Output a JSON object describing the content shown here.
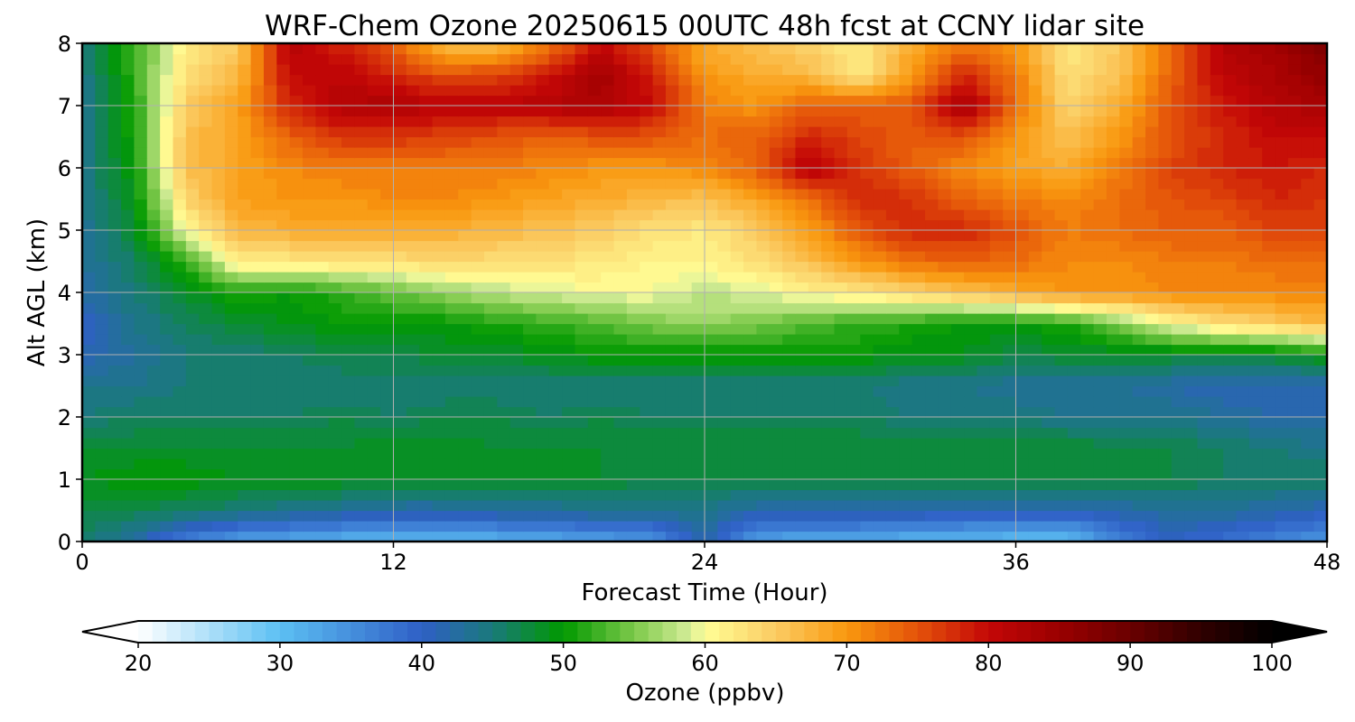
{
  "chart_data": {
    "type": "heatmap",
    "title": "WRF-Chem Ozone  20250615 00UTC 48h fcst at CCNY lidar site",
    "xlabel": "Forecast Time (Hour)",
    "ylabel": "Alt AGL (km)",
    "xlim": [
      0,
      48
    ],
    "ylim": [
      0,
      8
    ],
    "xticks": [
      "0",
      "12",
      "24",
      "36",
      "48"
    ],
    "yticks": [
      "0",
      "1",
      "2",
      "3",
      "4",
      "5",
      "6",
      "7",
      "8"
    ],
    "grid": true,
    "x": [
      0,
      2,
      4,
      6,
      8,
      10,
      12,
      14,
      16,
      18,
      20,
      22,
      24,
      26,
      28,
      30,
      32,
      34,
      36,
      38,
      40,
      42,
      44,
      46,
      48
    ],
    "y": [
      0,
      0.5,
      1,
      1.5,
      2,
      2.5,
      3,
      3.5,
      4,
      4.5,
      5,
      5.5,
      6,
      6.5,
      7,
      7.5,
      8
    ],
    "z": [
      [
        46,
        42,
        36,
        33,
        32,
        31,
        30,
        31,
        31,
        32,
        33,
        34,
        42,
        33,
        32,
        32,
        31,
        31,
        30,
        30,
        36,
        40,
        38,
        36,
        34
      ],
      [
        47,
        47,
        46,
        45,
        44,
        43,
        42,
        42,
        43,
        43,
        44,
        44,
        44,
        42,
        42,
        42,
        42,
        41,
        41,
        41,
        42,
        43,
        43,
        42,
        41
      ],
      [
        49,
        50,
        50,
        49,
        49,
        49,
        48,
        48,
        48,
        48,
        48,
        47,
        47,
        47,
        47,
        47,
        47,
        47,
        47,
        47,
        47,
        47,
        46,
        46,
        46
      ],
      [
        48,
        48,
        48,
        48,
        48,
        48,
        49,
        49,
        48,
        48,
        48,
        48,
        48,
        48,
        48,
        48,
        48,
        48,
        48,
        48,
        47,
        47,
        46,
        45,
        44
      ],
      [
        45,
        46,
        46,
        46,
        46,
        47,
        46,
        47,
        47,
        46,
        47,
        46,
        46,
        46,
        46,
        46,
        45,
        45,
        45,
        44,
        44,
        44,
        43,
        42,
        42
      ],
      [
        44,
        44,
        45,
        45,
        45,
        45,
        45,
        45,
        45,
        45,
        45,
        45,
        45,
        45,
        45,
        45,
        44,
        44,
        43,
        43,
        43,
        42,
        41,
        41,
        41
      ],
      [
        41,
        43,
        45,
        45,
        46,
        47,
        47,
        48,
        48,
        49,
        50,
        50,
        50,
        50,
        50,
        50,
        49,
        49,
        47,
        48,
        48,
        48,
        48,
        48,
        50
      ],
      [
        40,
        44,
        46,
        48,
        49,
        50,
        50,
        50,
        51,
        52,
        53,
        55,
        56,
        55,
        53,
        52,
        51,
        50,
        50,
        51,
        55,
        60,
        63,
        65,
        67
      ],
      [
        42,
        45,
        48,
        51,
        50,
        52,
        54,
        56,
        58,
        59,
        60,
        60,
        58,
        59,
        61,
        62,
        64,
        66,
        68,
        70,
        70,
        71,
        71,
        71,
        71
      ],
      [
        43,
        46,
        52,
        62,
        62,
        63,
        63,
        64,
        63,
        63,
        62,
        61,
        61,
        63,
        66,
        70,
        73,
        74,
        73,
        71,
        71,
        72,
        72,
        73,
        73
      ],
      [
        43,
        48,
        60,
        67,
        68,
        68,
        68,
        68,
        67,
        66,
        65,
        63,
        62,
        65,
        69,
        75,
        78,
        78,
        75,
        72,
        73,
        74,
        74,
        76,
        76
      ],
      [
        44,
        49,
        64,
        69,
        70,
        70,
        71,
        71,
        70,
        69,
        68,
        67,
        66,
        69,
        73,
        78,
        77,
        74,
        72,
        71,
        73,
        75,
        76,
        78,
        77
      ],
      [
        44,
        50,
        66,
        69,
        71,
        72,
        72,
        72,
        72,
        71,
        70,
        70,
        71,
        74,
        82,
        77,
        74,
        71,
        69,
        68,
        72,
        76,
        78,
        79,
        78
      ],
      [
        44,
        51,
        66,
        69,
        74,
        77,
        77,
        76,
        75,
        74,
        75,
        75,
        73,
        74,
        78,
        76,
        74,
        75,
        70,
        66,
        70,
        75,
        78,
        80,
        80
      ],
      [
        44,
        51,
        65,
        69,
        78,
        82,
        83,
        81,
        81,
        82,
        83,
        80,
        72,
        70,
        74,
        74,
        75,
        84,
        73,
        64,
        68,
        75,
        79,
        82,
        83
      ],
      [
        44,
        52,
        63,
        67,
        80,
        81,
        78,
        75,
        76,
        79,
        84,
        78,
        70,
        68,
        67,
        62,
        70,
        78,
        72,
        63,
        66,
        74,
        81,
        83,
        86
      ],
      [
        45,
        52,
        62,
        65,
        82,
        78,
        74,
        66,
        66,
        72,
        80,
        75,
        68,
        66,
        64,
        62,
        68,
        72,
        70,
        62,
        65,
        73,
        82,
        84,
        88
      ]
    ],
    "colorbar": {
      "label": "Ozone  (ppbv)",
      "min": 20,
      "max": 100,
      "extend": "both",
      "ticks": [
        "20",
        "30",
        "40",
        "50",
        "60",
        "70",
        "80",
        "90",
        "100"
      ],
      "colors": [
        {
          "v": 20,
          "c": "#ffffff"
        },
        {
          "v": 30,
          "c": "#5cc0f3"
        },
        {
          "v": 40,
          "c": "#2f5fc6"
        },
        {
          "v": 45,
          "c": "#1a7a7a"
        },
        {
          "v": 50,
          "c": "#009900"
        },
        {
          "v": 55,
          "c": "#7dc94a"
        },
        {
          "v": 59,
          "c": "#d6ee9a"
        },
        {
          "v": 60,
          "c": "#fffe96"
        },
        {
          "v": 65,
          "c": "#fbcb62"
        },
        {
          "v": 70,
          "c": "#f9980e"
        },
        {
          "v": 75,
          "c": "#e4520a"
        },
        {
          "v": 80,
          "c": "#c40707"
        },
        {
          "v": 85,
          "c": "#9a0000"
        },
        {
          "v": 90,
          "c": "#6a0000"
        },
        {
          "v": 95,
          "c": "#300000"
        },
        {
          "v": 100,
          "c": "#000000"
        }
      ],
      "extend_min_color": "#ffffff",
      "extend_max_color": "#000000"
    }
  }
}
